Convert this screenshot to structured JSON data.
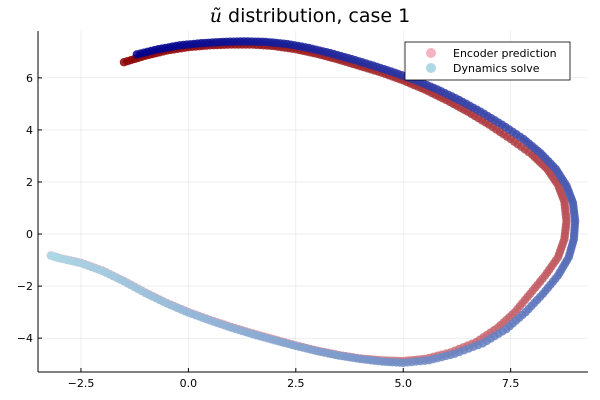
{
  "chart_data": {
    "type": "scatter",
    "title": "ũ distribution, case 1",
    "title_math": "ũ",
    "title_rest": " distribution, case 1",
    "xlabel": "",
    "ylabel": "",
    "xlim": [
      -3.5,
      9.3
    ],
    "ylim": [
      -5.3,
      7.8
    ],
    "x_ticks": [
      -2.5,
      0.0,
      2.5,
      5.0,
      7.5
    ],
    "x_tick_labels": [
      "−2.5",
      "0.0",
      "2.5",
      "5.0",
      "7.5"
    ],
    "y_ticks": [
      -4,
      -2,
      0,
      2,
      4,
      6
    ],
    "y_tick_labels": [
      "−4",
      "−2",
      "0",
      "2",
      "4",
      "6"
    ],
    "grid": true,
    "legend_position": "top-right",
    "series": [
      {
        "name": "Encoder prediction",
        "legend_color": "#f4b3c2",
        "color_start": "#8b0000",
        "color_end": "#f4b3c2",
        "points": [
          [
            -1.5,
            6.6
          ],
          [
            -1.0,
            6.85
          ],
          [
            -0.5,
            7.05
          ],
          [
            0.0,
            7.18
          ],
          [
            0.5,
            7.25
          ],
          [
            1.0,
            7.28
          ],
          [
            1.5,
            7.28
          ],
          [
            2.0,
            7.22
          ],
          [
            2.5,
            7.1
          ],
          [
            3.0,
            6.92
          ],
          [
            3.5,
            6.7
          ],
          [
            4.0,
            6.45
          ],
          [
            4.5,
            6.2
          ],
          [
            5.0,
            5.9
          ],
          [
            5.5,
            5.55
          ],
          [
            6.0,
            5.15
          ],
          [
            6.5,
            4.7
          ],
          [
            7.0,
            4.2
          ],
          [
            7.5,
            3.65
          ],
          [
            8.0,
            3.05
          ],
          [
            8.35,
            2.5
          ],
          [
            8.6,
            1.9
          ],
          [
            8.75,
            1.25
          ],
          [
            8.8,
            0.5
          ],
          [
            8.75,
            -0.2
          ],
          [
            8.6,
            -0.9
          ],
          [
            8.3,
            -1.6
          ],
          [
            7.95,
            -2.3
          ],
          [
            7.6,
            -3.0
          ],
          [
            7.2,
            -3.6
          ],
          [
            6.7,
            -4.15
          ],
          [
            6.1,
            -4.55
          ],
          [
            5.5,
            -4.8
          ],
          [
            5.0,
            -4.88
          ],
          [
            4.5,
            -4.85
          ],
          [
            4.0,
            -4.78
          ],
          [
            3.5,
            -4.65
          ],
          [
            3.0,
            -4.48
          ],
          [
            2.5,
            -4.28
          ],
          [
            2.0,
            -4.05
          ],
          [
            1.5,
            -3.82
          ],
          [
            1.0,
            -3.57
          ],
          [
            0.5,
            -3.3
          ],
          [
            0.0,
            -3.0
          ],
          [
            -0.5,
            -2.65
          ],
          [
            -1.0,
            -2.25
          ],
          [
            -1.5,
            -1.8
          ],
          [
            -2.0,
            -1.4
          ],
          [
            -2.5,
            -1.1
          ],
          [
            -3.0,
            -0.92
          ],
          [
            -3.2,
            -0.82
          ]
        ]
      },
      {
        "name": "Dynamics solve",
        "legend_color": "#add8e6",
        "color_start": "#00008b",
        "color_end": "#add8e6",
        "points": [
          [
            -1.2,
            6.9
          ],
          [
            -0.7,
            7.1
          ],
          [
            -0.2,
            7.25
          ],
          [
            0.3,
            7.33
          ],
          [
            0.8,
            7.38
          ],
          [
            1.3,
            7.4
          ],
          [
            1.8,
            7.38
          ],
          [
            2.3,
            7.3
          ],
          [
            2.8,
            7.15
          ],
          [
            3.3,
            6.95
          ],
          [
            3.8,
            6.72
          ],
          [
            4.3,
            6.47
          ],
          [
            4.8,
            6.2
          ],
          [
            5.3,
            5.9
          ],
          [
            5.8,
            5.55
          ],
          [
            6.3,
            5.15
          ],
          [
            6.8,
            4.7
          ],
          [
            7.3,
            4.2
          ],
          [
            7.8,
            3.65
          ],
          [
            8.2,
            3.1
          ],
          [
            8.55,
            2.5
          ],
          [
            8.8,
            1.85
          ],
          [
            8.95,
            1.2
          ],
          [
            9.0,
            0.5
          ],
          [
            8.97,
            -0.2
          ],
          [
            8.85,
            -0.9
          ],
          [
            8.6,
            -1.6
          ],
          [
            8.25,
            -2.3
          ],
          [
            7.85,
            -3.0
          ],
          [
            7.4,
            -3.65
          ],
          [
            6.85,
            -4.2
          ],
          [
            6.2,
            -4.6
          ],
          [
            5.6,
            -4.85
          ],
          [
            5.0,
            -4.95
          ],
          [
            4.5,
            -4.9
          ],
          [
            4.0,
            -4.8
          ],
          [
            3.5,
            -4.67
          ],
          [
            3.0,
            -4.5
          ],
          [
            2.5,
            -4.3
          ],
          [
            2.0,
            -4.08
          ],
          [
            1.5,
            -3.85
          ],
          [
            1.0,
            -3.6
          ],
          [
            0.5,
            -3.32
          ],
          [
            0.0,
            -3.02
          ],
          [
            -0.5,
            -2.67
          ],
          [
            -1.0,
            -2.27
          ],
          [
            -1.5,
            -1.82
          ],
          [
            -2.0,
            -1.42
          ],
          [
            -2.5,
            -1.12
          ],
          [
            -3.0,
            -0.93
          ],
          [
            -3.2,
            -0.83
          ]
        ]
      }
    ]
  }
}
